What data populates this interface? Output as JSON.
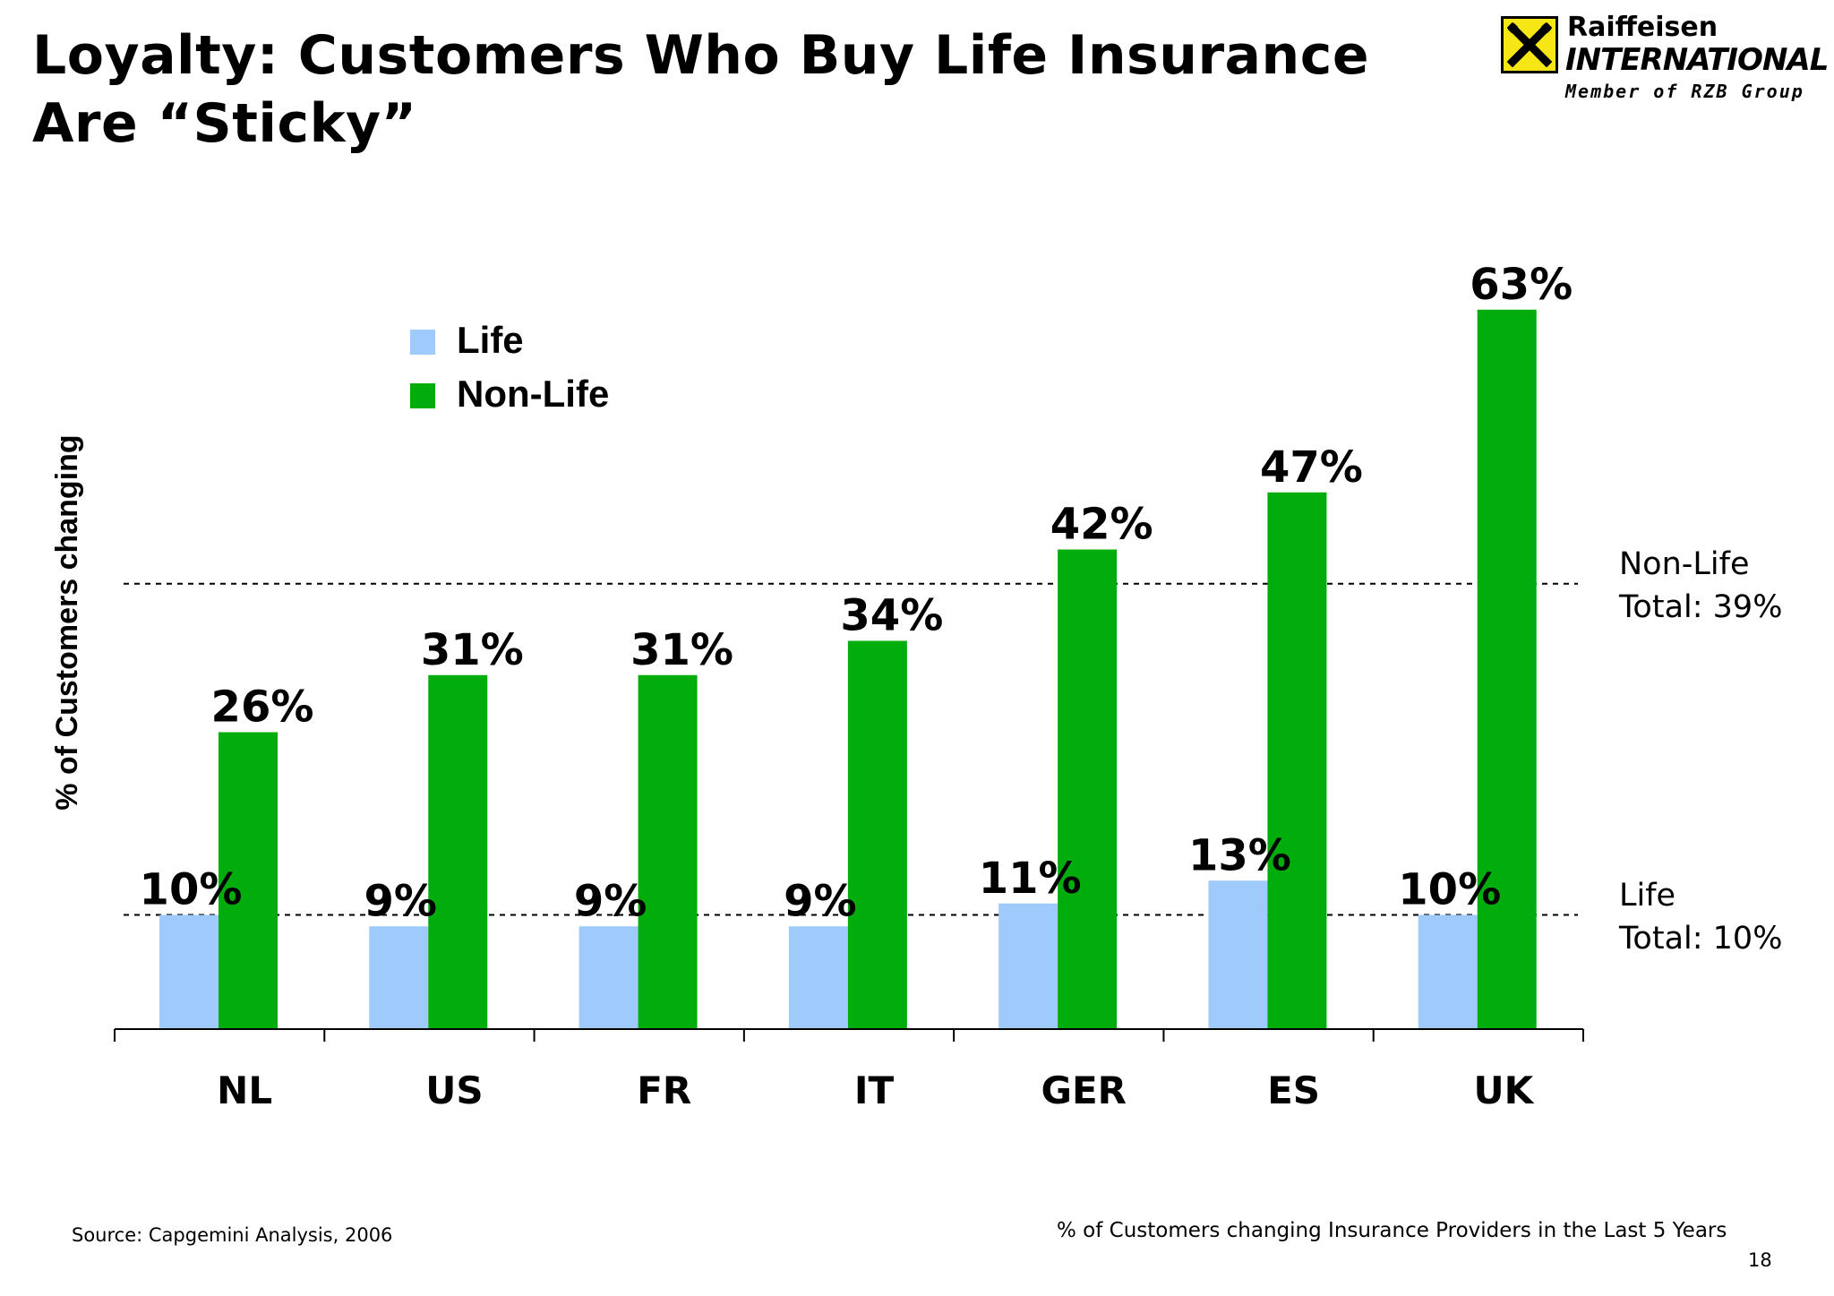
{
  "title": "Loyalty: Customers Who Buy Life Insurance Are “Sticky”",
  "logo": {
    "name": "Raiffeisen",
    "brand": "INTERNATIONAL",
    "member": "Member of RZB Group",
    "icon": "crossed-gables-icon",
    "color": "#f7e616"
  },
  "chart_data": {
    "type": "bar",
    "categories": [
      "NL",
      "US",
      "FR",
      "IT",
      "GER",
      "ES",
      "UK"
    ],
    "series": [
      {
        "name": "Life",
        "color": "#9ecbfb",
        "values": [
          10,
          9,
          9,
          9,
          11,
          13,
          10
        ],
        "labels": [
          "10%",
          "9%",
          "9%",
          "9%",
          "11%",
          "13%",
          "10%"
        ]
      },
      {
        "name": "Non-Life",
        "color": "#00ad0c",
        "values": [
          26,
          31,
          31,
          34,
          42,
          47,
          63
        ],
        "labels": [
          "26%",
          "31%",
          "31%",
          "34%",
          "42%",
          "47%",
          "63%"
        ]
      }
    ],
    "ylabel": "% of Customers changing",
    "ylim": [
      0,
      63
    ],
    "grid": false,
    "legend": "top-left",
    "reference_lines": [
      {
        "series": "Non-Life",
        "value": 39,
        "label_line1": "Non-Life",
        "label_line2": "Total: 39%"
      },
      {
        "series": "Life",
        "value": 10,
        "label_line1": "Life",
        "label_line2": "Total: 10%"
      }
    ]
  },
  "footer": {
    "source": "Source: Capgemini Analysis, 2006",
    "caption": "% of Customers changing Insurance Providers in the Last 5 Years",
    "page_number": "18"
  }
}
